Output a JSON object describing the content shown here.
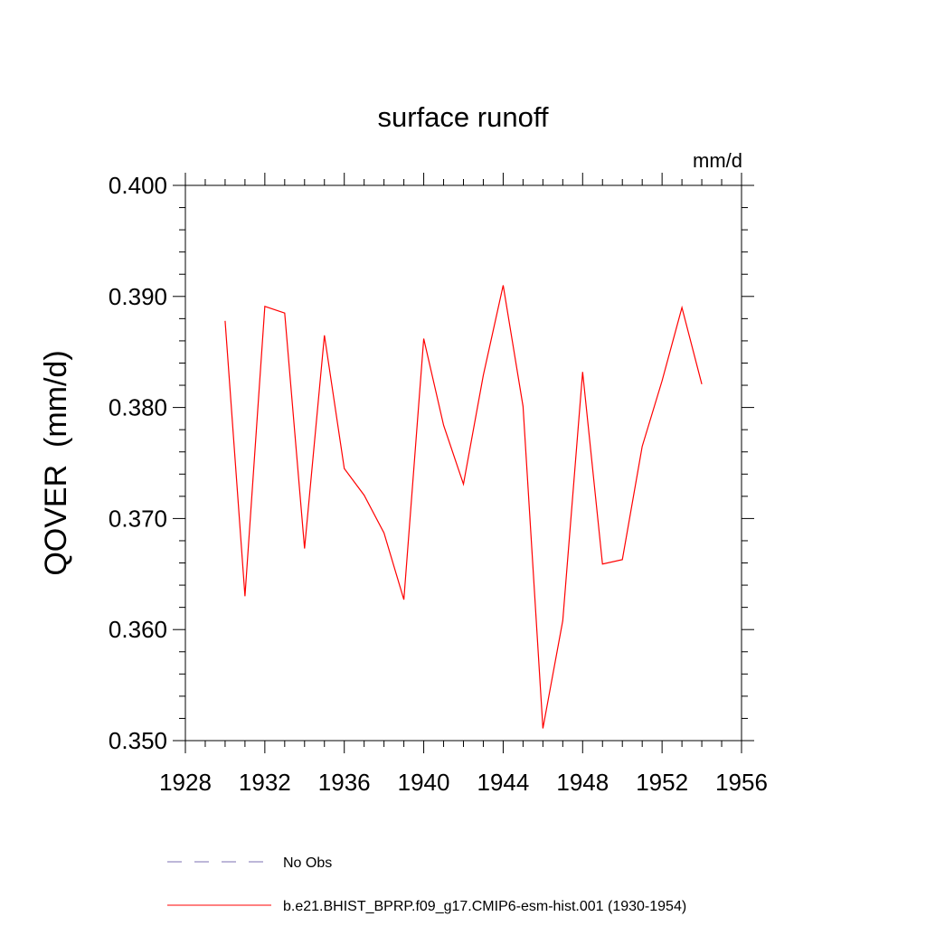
{
  "chart_data": {
    "type": "line",
    "title": "surface runoff",
    "units": "mm/d",
    "ylabel": "QOVER  (mm/d)",
    "xlabel": "",
    "xlim": [
      1928,
      1956
    ],
    "ylim": [
      0.35,
      0.4
    ],
    "xticks": [
      1928,
      1932,
      1936,
      1940,
      1944,
      1948,
      1952,
      1956
    ],
    "xtick_labels": [
      "1928",
      "1932",
      "1936",
      "1940",
      "1944",
      "1948",
      "1952",
      "1956"
    ],
    "yticks": [
      0.35,
      0.36,
      0.37,
      0.38,
      0.39,
      0.4
    ],
    "ytick_labels": [
      "0.350",
      "0.360",
      "0.370",
      "0.380",
      "0.390",
      "0.400"
    ],
    "grid": false,
    "legend_position": "bottom",
    "legend": [
      {
        "label": "No Obs",
        "style": "dashed",
        "color": "#7b6fb0"
      },
      {
        "label": "b.e21.BHIST_BPRP.f09_g17.CMIP6-esm-hist.001 (1930-1954)",
        "style": "solid",
        "color": "#ff0000"
      }
    ],
    "series": [
      {
        "color": "#ff0000",
        "x": [
          1930,
          1931,
          1932,
          1933,
          1934,
          1935,
          1936,
          1937,
          1938,
          1939,
          1940,
          1941,
          1942,
          1943,
          1944,
          1945,
          1946,
          1947,
          1948,
          1949,
          1950,
          1951,
          1952,
          1953,
          1954
        ],
        "values": [
          0.3878,
          0.363,
          0.3891,
          0.3885,
          0.3673,
          0.3865,
          0.3745,
          0.3721,
          0.3687,
          0.3627,
          0.3862,
          0.3784,
          0.3731,
          0.3829,
          0.391,
          0.3801,
          0.3511,
          0.3608,
          0.3832,
          0.3659,
          0.3663,
          0.3765,
          0.3824,
          0.389,
          0.3821
        ]
      }
    ]
  }
}
